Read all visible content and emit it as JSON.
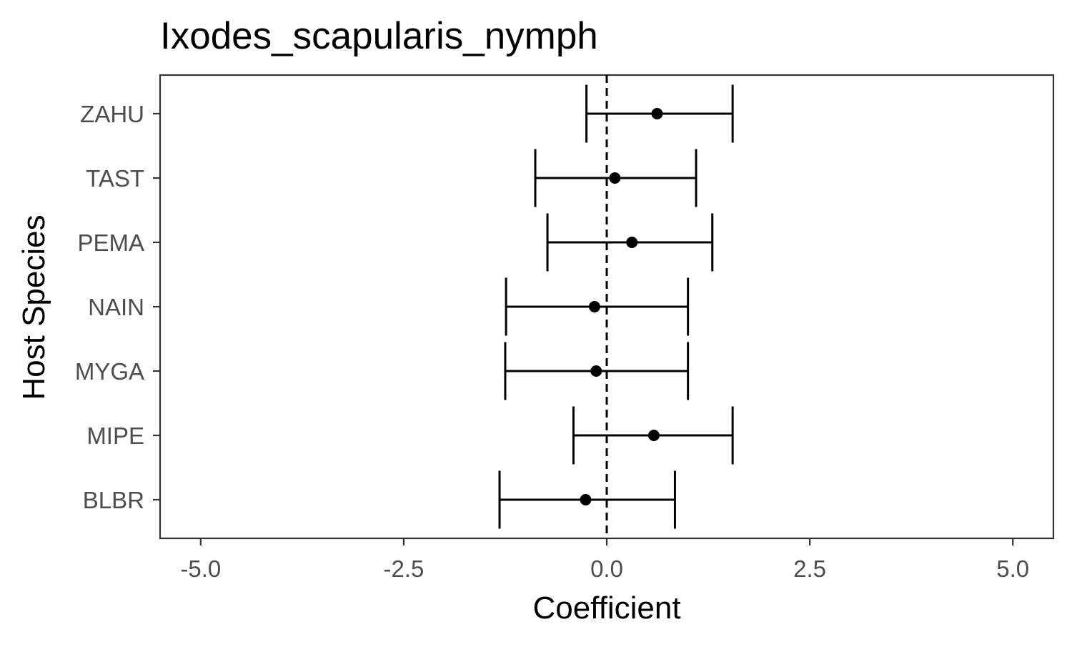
{
  "chart_data": {
    "type": "scatter",
    "subtype": "coefficient-plot-with-error-bars",
    "title": "Ixodes_scapularis_nymph",
    "xlabel": "Coefficient",
    "ylabel": "Host Species",
    "xlim": [
      -5.5,
      5.5
    ],
    "x_ticks": [
      -5.0,
      -2.5,
      0.0,
      2.5,
      5.0
    ],
    "x_tick_labels": [
      "-5.0",
      "-2.5",
      "0.0",
      "2.5",
      "5.0"
    ],
    "reference_line": {
      "x": 0,
      "style": "dashed"
    },
    "categories": [
      "ZAHU",
      "TAST",
      "PEMA",
      "NAIN",
      "MYGA",
      "MIPE",
      "BLBR"
    ],
    "estimates": [
      0.62,
      0.1,
      0.31,
      -0.15,
      -0.13,
      0.58,
      -0.26
    ],
    "lower": [
      -0.25,
      -0.88,
      -0.73,
      -1.24,
      -1.25,
      -0.41,
      -1.32
    ],
    "upper": [
      1.55,
      1.1,
      1.3,
      1.0,
      1.0,
      1.55,
      0.84
    ],
    "grid": false,
    "legend": "none",
    "colors": {
      "points": "#000000",
      "errorbars": "#000000",
      "panel_border": "#333333",
      "tick_text": "#4d4d4d",
      "background": "#ffffff"
    }
  }
}
